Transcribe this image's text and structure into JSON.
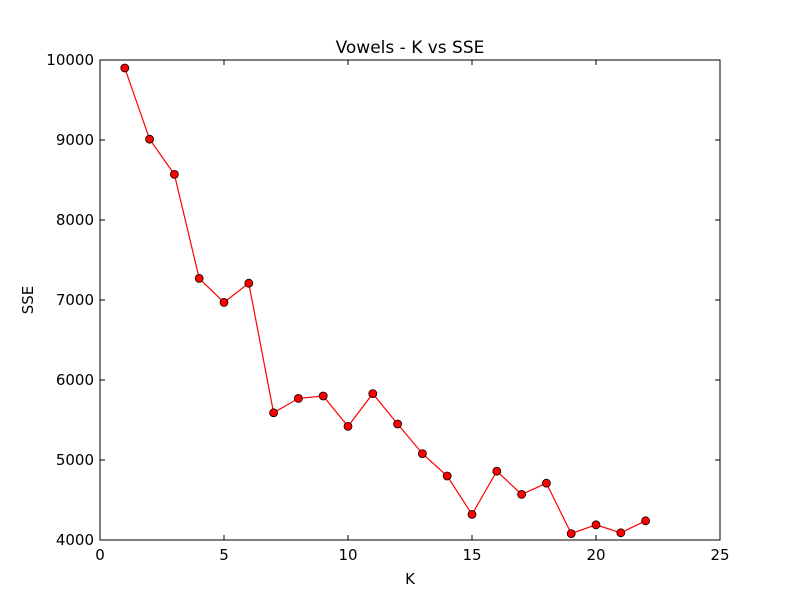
{
  "chart_data": {
    "type": "line",
    "title": "Vowels - K vs SSE",
    "xlabel": "K",
    "ylabel": "SSE",
    "xlim": [
      0,
      25
    ],
    "ylim": [
      4000,
      10000
    ],
    "xticks": [
      "0",
      "5",
      "10",
      "15",
      "20",
      "25"
    ],
    "yticks": [
      "4000",
      "5000",
      "6000",
      "7000",
      "8000",
      "9000",
      "10000"
    ],
    "grid": false,
    "legend": "none",
    "series": [
      {
        "color": "#ff0000",
        "marker": "circle",
        "x": [
          1,
          2,
          3,
          4,
          5,
          6,
          7,
          8,
          9,
          10,
          11,
          12,
          13,
          14,
          15,
          16,
          17,
          18,
          19,
          20,
          21,
          22
        ],
        "y": [
          9900,
          9010,
          8570,
          7270,
          6970,
          7210,
          5590,
          5770,
          5800,
          5420,
          5830,
          5450,
          5080,
          4800,
          4320,
          4860,
          4570,
          4710,
          4080,
          4190,
          4090,
          4240
        ]
      }
    ]
  }
}
